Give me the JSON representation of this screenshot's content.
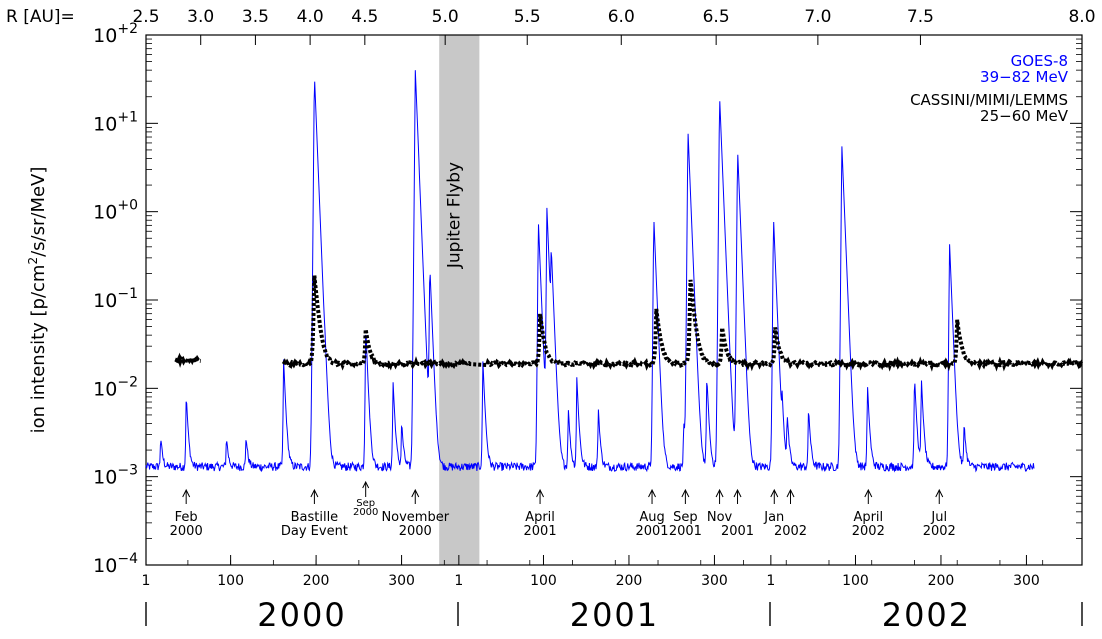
{
  "chart_data": {
    "type": "line",
    "scale": "log",
    "ylim": [
      0.0001,
      100
    ],
    "yticks": [
      {
        "value": 0.0001,
        "base": "10",
        "exp": "−4"
      },
      {
        "value": 0.001,
        "base": "10",
        "exp": "−3"
      },
      {
        "value": 0.01,
        "base": "10",
        "exp": "−2"
      },
      {
        "value": 0.1,
        "base": "10",
        "exp": "−1"
      },
      {
        "value": 1,
        "base": "10",
        "exp": "+0"
      },
      {
        "value": 10,
        "base": "10",
        "exp": "+1"
      },
      {
        "value": 100,
        "base": "10",
        "exp": "+2"
      }
    ],
    "ylabel_parts": [
      "ion intensity  [p/cm",
      "2",
      "/s/sr/MeV]"
    ],
    "xlim_days": [
      1,
      1096
    ],
    "top_axis": {
      "prefix": "R  [AU]=",
      "ticks": [
        {
          "day": 1,
          "label": "2.5"
        },
        {
          "day": 65,
          "label": "3.0"
        },
        {
          "day": 129,
          "label": "3.5"
        },
        {
          "day": 193,
          "label": "4.0"
        },
        {
          "day": 257,
          "label": "4.5"
        },
        {
          "day": 351,
          "label": "5.0"
        },
        {
          "day": 447,
          "label": "5.5"
        },
        {
          "day": 557,
          "label": "6.0"
        },
        {
          "day": 668,
          "label": "6.5"
        },
        {
          "day": 787,
          "label": "7.0"
        },
        {
          "day": 907,
          "label": "7.5"
        },
        {
          "day": 1096,
          "label": "8.0"
        }
      ]
    },
    "bottom_axis": {
      "ticks": [
        {
          "day": 1,
          "label": "1"
        },
        {
          "day": 100,
          "label": "100"
        },
        {
          "day": 200,
          "label": "200"
        },
        {
          "day": 300,
          "label": "300"
        },
        {
          "day": 367,
          "label": "1"
        },
        {
          "day": 466,
          "label": "100"
        },
        {
          "day": 566,
          "label": "200"
        },
        {
          "day": 666,
          "label": "300"
        },
        {
          "day": 732,
          "label": "1"
        },
        {
          "day": 831,
          "label": "100"
        },
        {
          "day": 931,
          "label": "200"
        },
        {
          "day": 1031,
          "label": "300"
        }
      ],
      "years": [
        {
          "start": 1,
          "end": 366,
          "label": "2000"
        },
        {
          "start": 367,
          "end": 731,
          "label": "2001"
        },
        {
          "start": 732,
          "end": 1096,
          "label": "2002"
        }
      ]
    },
    "flyby_band": {
      "start_day": 344,
      "end_day": 391,
      "label": "Jupiter Flyby"
    },
    "series": [
      {
        "name": "GOES-8",
        "label_line2": "39−82 MeV",
        "color": "#0000ff",
        "baseline": 0.0013,
        "peaks": [
          {
            "day": 18,
            "value": 0.0017
          },
          {
            "day": 48,
            "value": 0.0075
          },
          {
            "day": 95,
            "value": 0.0017
          },
          {
            "day": 118,
            "value": 0.0017
          },
          {
            "day": 162,
            "value": 0.02
          },
          {
            "day": 198,
            "value": 37
          },
          {
            "day": 210,
            "value": 0.007
          },
          {
            "day": 258,
            "value": 0.05
          },
          {
            "day": 290,
            "value": 0.011
          },
          {
            "day": 300,
            "value": 0.003
          },
          {
            "day": 316,
            "value": 40
          },
          {
            "day": 333,
            "value": 0.25
          },
          {
            "day": 395,
            "value": 0.02
          },
          {
            "day": 460,
            "value": 0.8
          },
          {
            "day": 470,
            "value": 1.1
          },
          {
            "day": 475,
            "value": 0.35
          },
          {
            "day": 495,
            "value": 0.005
          },
          {
            "day": 505,
            "value": 0.012
          },
          {
            "day": 530,
            "value": 0.005
          },
          {
            "day": 595,
            "value": 0.9
          },
          {
            "day": 630,
            "value": 0.003
          },
          {
            "day": 635,
            "value": 8.5
          },
          {
            "day": 657,
            "value": 0.013
          },
          {
            "day": 672,
            "value": 21
          },
          {
            "day": 693,
            "value": 5.2
          },
          {
            "day": 735,
            "value": 0.9
          },
          {
            "day": 745,
            "value": 0.005
          },
          {
            "day": 751,
            "value": 0.004
          },
          {
            "day": 776,
            "value": 0.005
          },
          {
            "day": 815,
            "value": 5.8
          },
          {
            "day": 845,
            "value": 0.01
          },
          {
            "day": 900,
            "value": 0.013
          },
          {
            "day": 908,
            "value": 0.012
          },
          {
            "day": 941,
            "value": 0.45
          },
          {
            "day": 958,
            "value": 0.003
          },
          {
            "day": 1045,
            "value": 0.027
          }
        ]
      },
      {
        "name": "CASSINI/MIMI/LEMMS",
        "label_line2": "25−60 MeV",
        "color": "#000000",
        "segments": [
          {
            "start": 35,
            "end": 65,
            "level": 0.021
          },
          {
            "start": 162,
            "end": 1096,
            "level": 0.019
          }
        ],
        "peaks": [
          {
            "day": 198,
            "value": 0.17
          },
          {
            "day": 258,
            "value": 0.027
          },
          {
            "day": 462,
            "value": 0.05
          },
          {
            "day": 598,
            "value": 0.06
          },
          {
            "day": 638,
            "value": 0.15
          },
          {
            "day": 675,
            "value": 0.03
          },
          {
            "day": 737,
            "value": 0.03
          },
          {
            "day": 950,
            "value": 0.04
          }
        ]
      }
    ],
    "annotations": [
      {
        "day": 48,
        "lines": [
          "Feb",
          "2000"
        ],
        "small": false
      },
      {
        "day": 198,
        "lines": [
          "Bastille",
          "Day Event"
        ],
        "small": false
      },
      {
        "day": 258,
        "lines": [
          "Sep",
          "2000"
        ],
        "small": true
      },
      {
        "day": 316,
        "lines": [
          "November",
          "2000"
        ],
        "small": false
      },
      {
        "day": 462,
        "lines": [
          "April",
          "2001"
        ],
        "small": false
      },
      {
        "day": 593,
        "lines": [
          "Aug",
          "2001"
        ],
        "small": false
      },
      {
        "day": 632,
        "lines": [
          "Sep",
          "2001"
        ],
        "small": false
      },
      {
        "day": 672,
        "lines": [
          "Nov",
          ""
        ],
        "small": false
      },
      {
        "day": 693,
        "lines": [
          "",
          "2001"
        ],
        "small": false
      },
      {
        "day": 736,
        "lines": [
          "Jan",
          ""
        ],
        "small": false
      },
      {
        "day": 755,
        "lines": [
          "",
          "2002"
        ],
        "small": false
      },
      {
        "day": 846,
        "lines": [
          "April",
          "2002"
        ],
        "small": false
      },
      {
        "day": 929,
        "lines": [
          "Jul",
          "2002"
        ],
        "small": false
      }
    ]
  }
}
